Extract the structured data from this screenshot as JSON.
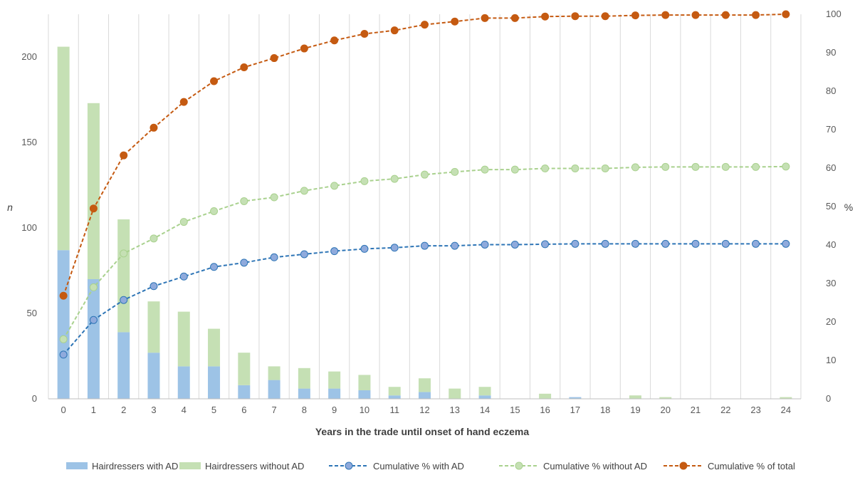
{
  "chart_data": {
    "type": "bar",
    "title": "",
    "xlabel": "Years in the trade until onset of hand eczema",
    "ylabel": "n",
    "y2label": "%",
    "ylim": [
      0,
      225
    ],
    "y2lim": [
      0,
      100
    ],
    "yticks": [
      0,
      50,
      100,
      150,
      200
    ],
    "y2ticks": [
      0,
      10,
      20,
      30,
      40,
      50,
      60,
      70,
      80,
      90,
      100
    ],
    "grid": "vertical",
    "legend_position": "bottom",
    "categories": [
      "0",
      "1",
      "2",
      "3",
      "4",
      "5",
      "6",
      "7",
      "8",
      "9",
      "10",
      "11",
      "12",
      "13",
      "14",
      "15",
      "16",
      "17",
      "18",
      "19",
      "20",
      "21",
      "22",
      "23",
      "24"
    ],
    "bar_series": [
      {
        "name": "Hairdressers with AD",
        "color": "#9dc3e6",
        "values": [
          87,
          70,
          39,
          27,
          19,
          19,
          8,
          11,
          6,
          6,
          5,
          2,
          4,
          0,
          2,
          0,
          0,
          1,
          0,
          0,
          0,
          0,
          0,
          0,
          0
        ]
      },
      {
        "name": "Hairdressers without AD",
        "color": "#c5e0b4",
        "values": [
          119,
          103,
          66,
          30,
          32,
          22,
          19,
          8,
          12,
          10,
          9,
          5,
          8,
          6,
          5,
          0,
          3,
          0,
          0,
          2,
          1,
          0,
          0,
          0,
          1
        ]
      }
    ],
    "line_series": [
      {
        "name": "Cumulative % with AD",
        "color": "#2e75b6",
        "marker_fill": "#8faadc",
        "values": [
          11.5,
          20.5,
          25.7,
          29.3,
          31.8,
          34.3,
          35.4,
          36.8,
          37.6,
          38.4,
          39.0,
          39.3,
          39.8,
          39.8,
          40.1,
          40.1,
          40.2,
          40.3,
          40.3,
          40.3,
          40.3,
          40.3,
          40.3,
          40.3,
          40.3
        ]
      },
      {
        "name": "Cumulative % without AD",
        "color": "#a9d18e",
        "marker_fill": "#c5e0b4",
        "values": [
          15.5,
          29.0,
          37.8,
          41.7,
          46.0,
          48.8,
          51.4,
          52.4,
          54.1,
          55.4,
          56.6,
          57.2,
          58.3,
          59.0,
          59.6,
          59.6,
          59.9,
          59.9,
          59.9,
          60.2,
          60.3,
          60.3,
          60.3,
          60.3,
          60.4
        ]
      },
      {
        "name": "Cumulative % of total",
        "color": "#c55a11",
        "marker_fill": "#c55a11",
        "values": [
          26.8,
          49.5,
          63.3,
          70.5,
          77.2,
          82.6,
          86.2,
          88.6,
          91.1,
          93.2,
          94.9,
          95.8,
          97.3,
          98.1,
          99.0,
          99.0,
          99.4,
          99.5,
          99.5,
          99.7,
          99.8,
          99.8,
          99.8,
          99.8,
          100.0
        ]
      }
    ]
  }
}
